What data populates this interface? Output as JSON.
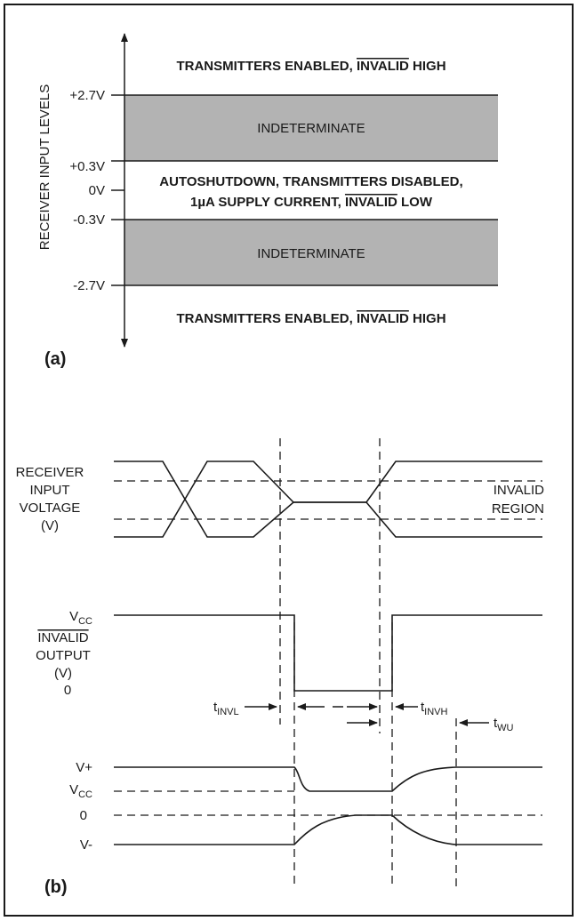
{
  "part_a": {
    "panel_label": "(a)",
    "axis_label": "RECEIVER INPUT LEVELS",
    "ticks": {
      "p27": "+2.7V",
      "p03": "+0.3V",
      "zero": "0V",
      "m03": "-0.3V",
      "m27": "-2.7V"
    },
    "region_top": {
      "lead": "TRANSMITTERS ENABLED, ",
      "over": "INVALID",
      "tail": " HIGH"
    },
    "indeterminate": "INDETERMINATE",
    "region_mid_line1": "AUTOSHUTDOWN, TRANSMITTERS DISABLED,",
    "region_mid_line2": {
      "lead": "1µA SUPPLY CURRENT, ",
      "over": "INVALID",
      "tail": " LOW"
    },
    "region_bottom": {
      "lead": "TRANSMITTERS ENABLED, ",
      "over": "INVALID",
      "tail": " HIGH"
    },
    "shade_color": "#b3b3b3"
  },
  "part_b": {
    "panel_label": "(b)",
    "receiver_label": [
      "RECEIVER",
      "INPUT",
      "VOLTAGE",
      "(V)"
    ],
    "invalid_region": [
      "INVALID",
      "REGION"
    ],
    "output_label": {
      "vcc_base": "V",
      "vcc_sub": "CC",
      "over": "INVALID",
      "line2": "OUTPUT",
      "line3": "(V)",
      "zero": "0"
    },
    "supply_label": {
      "vplus": "V+",
      "vcc_base": "V",
      "vcc_sub": "CC",
      "zero": "0",
      "vminus": "V-"
    },
    "timing": {
      "invl": {
        "base": "t",
        "sub": "INVL"
      },
      "invh": {
        "base": "t",
        "sub": "INVH"
      },
      "wu": {
        "base": "t",
        "sub": "WU"
      }
    }
  }
}
